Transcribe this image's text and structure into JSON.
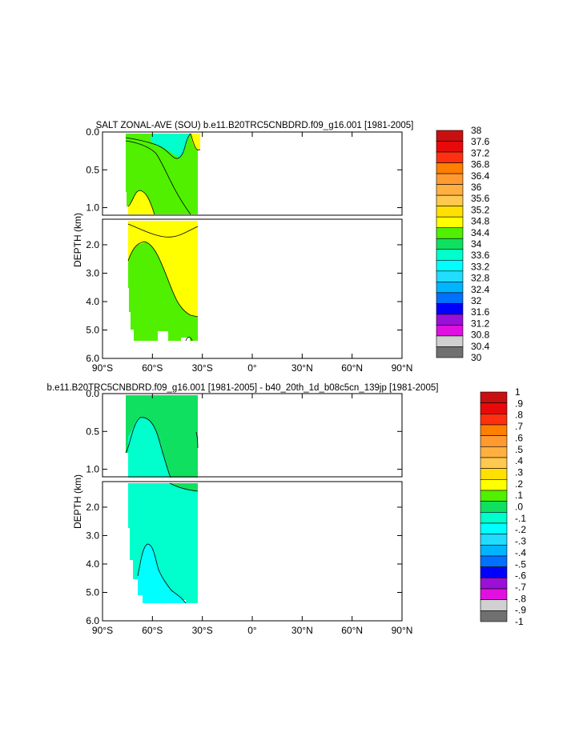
{
  "chart_data": [
    {
      "type": "heatmap",
      "title": "SALT ZONAL-AVE (SOU) b.e11.B20TRC5CNBDRD.f09_g16.001 [1981-2005]",
      "ylabel": "DEPTH (km)",
      "xlim": [
        -90,
        90
      ],
      "ylim": [
        0,
        6
      ],
      "depth_break_km": 1.1,
      "x_ticks": [
        "90°S",
        "60°S",
        "30°S",
        "0°",
        "30°N",
        "60°N",
        "90°N"
      ],
      "y_ticks_upper": [
        "0.0",
        "0.5",
        "1.0"
      ],
      "y_ticks_lower": [
        "2.0",
        "3.0",
        "4.0",
        "5.0",
        "6.0"
      ],
      "legend_placement": "right",
      "colorbar_labels": [
        "38",
        "37.6",
        "37.2",
        "36.8",
        "36.4",
        "36",
        "35.6",
        "35.2",
        "34.8",
        "34.4",
        "34",
        "33.6",
        "33.2",
        "32.8",
        "32.4",
        "32",
        "31.6",
        "31.2",
        "30.8",
        "30.4",
        "30"
      ],
      "colorbar_colors": [
        "#c81010",
        "#e80a0a",
        "#ff3010",
        "#ff7f00",
        "#ff9a30",
        "#ffb040",
        "#ffc850",
        "#ffe000",
        "#ffff00",
        "#50f000",
        "#10e060",
        "#00ffcc",
        "#00ffff",
        "#20dcff",
        "#00b4ff",
        "#0070ff",
        "#0000ff",
        "#9a10d8",
        "#e010e0",
        "#d0d0d0",
        "#707070"
      ],
      "regions": [
        {
          "value_range": [
            33.6,
            34.0
          ],
          "band": "upper",
          "lat": [
            -65,
            -45
          ],
          "depth_km": [
            0.0,
            0.25
          ]
        },
        {
          "value_range": [
            34.0,
            34.4
          ],
          "band": "upper",
          "lat": [
            -75,
            -33
          ],
          "depth_km": [
            0.0,
            1.1
          ]
        },
        {
          "value_range": [
            34.4,
            34.8
          ],
          "band": "upper",
          "lat": [
            -38,
            -33
          ],
          "depth_km": [
            0.0,
            0.2
          ]
        },
        {
          "value_range": [
            34.8,
            35.2
          ],
          "band": "upper",
          "lat": [
            -75,
            -52
          ],
          "depth_km": [
            0.75,
            1.1
          ]
        },
        {
          "value_range": [
            34.8,
            35.2
          ],
          "band": "lower",
          "lat": [
            -75,
            -33
          ],
          "depth_km": [
            1.1,
            4.5
          ]
        },
        {
          "value_range": [
            34.4,
            34.8
          ],
          "band": "lower",
          "lat": [
            -75,
            -33
          ],
          "depth_km": [
            1.1,
            5.4
          ]
        }
      ]
    },
    {
      "type": "heatmap",
      "title": "b.e11.B20TRC5CNBDRD.f09_g16.001 [1981-2005] - b40_20th_1d_b08c5cn_139jp [1981-2005]",
      "ylabel": "DEPTH (km)",
      "xlim": [
        -90,
        90
      ],
      "ylim": [
        0,
        6
      ],
      "depth_break_km": 1.1,
      "x_ticks": [
        "90°S",
        "60°S",
        "30°S",
        "0°",
        "30°N",
        "60°N",
        "90°N"
      ],
      "y_ticks_upper": [
        "0.0",
        "0.5",
        "1.0"
      ],
      "y_ticks_lower": [
        "2.0",
        "3.0",
        "4.0",
        "5.0",
        "6.0"
      ],
      "legend_placement": "right",
      "colorbar_labels": [
        "1",
        ".9",
        ".8",
        ".7",
        ".6",
        ".5",
        ".4",
        ".3",
        ".2",
        ".1",
        ".0",
        "-.1",
        "-.2",
        "-.3",
        "-.4",
        "-.5",
        "-.6",
        "-.7",
        "-.8",
        "-.9",
        "-1"
      ],
      "colorbar_colors": [
        "#c81010",
        "#e80a0a",
        "#ff3010",
        "#ff7f00",
        "#ff9a30",
        "#ffb040",
        "#ffc850",
        "#ffe000",
        "#ffff00",
        "#50f000",
        "#10e060",
        "#00ffcc",
        "#00ffff",
        "#20dcff",
        "#00b4ff",
        "#0070ff",
        "#0000ff",
        "#9a10d8",
        "#e010e0",
        "#d0d0d0",
        "#707070"
      ],
      "regions": [
        {
          "value_range": [
            0.0,
            0.1
          ],
          "band": "upper",
          "lat": [
            -75,
            -33
          ],
          "depth_km": [
            0.0,
            1.1
          ]
        },
        {
          "value_range": [
            -0.1,
            0.0
          ],
          "band": "upper",
          "lat": [
            -75,
            -45
          ],
          "depth_km": [
            0.25,
            1.1
          ]
        },
        {
          "value_range": [
            -0.1,
            0.0
          ],
          "band": "lower",
          "lat": [
            -75,
            -33
          ],
          "depth_km": [
            1.1,
            5.4
          ]
        },
        {
          "value_range": [
            -0.2,
            -0.1
          ],
          "band": "lower",
          "lat": [
            -72,
            -40
          ],
          "depth_km": [
            3.3,
            5.4
          ]
        }
      ]
    }
  ]
}
